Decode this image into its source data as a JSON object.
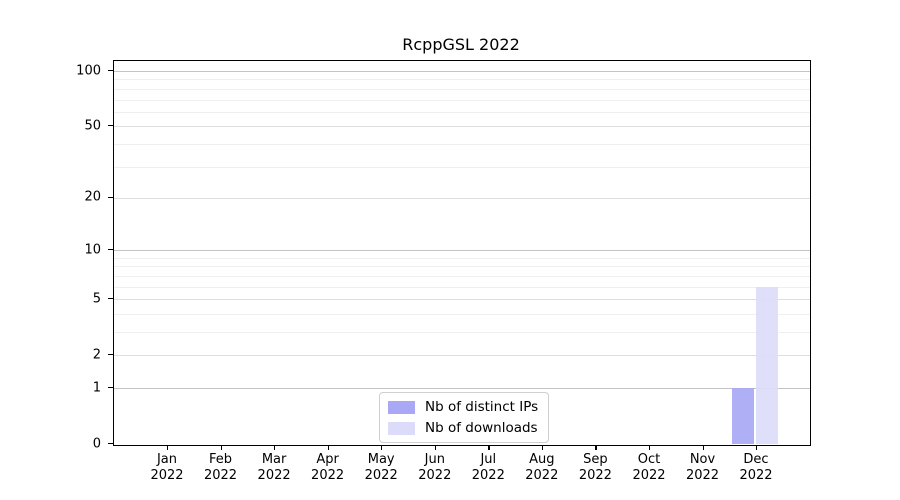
{
  "chart_data": {
    "type": "bar",
    "title": "RcppGSL 2022",
    "categories": [
      "Jan",
      "Feb",
      "Mar",
      "Apr",
      "May",
      "Jun",
      "Jul",
      "Aug",
      "Sep",
      "Oct",
      "Nov",
      "Dec"
    ],
    "category_year": "2022",
    "series": [
      {
        "name": "Nb of distinct IPs",
        "color": "#a8a8f5",
        "values": [
          0,
          0,
          0,
          0,
          0,
          0,
          0,
          0,
          0,
          0,
          0,
          1
        ]
      },
      {
        "name": "Nb of downloads",
        "color": "#dcdcfa",
        "values": [
          0,
          0,
          0,
          0,
          0,
          0,
          0,
          0,
          0,
          0,
          0,
          6
        ]
      }
    ],
    "xlabel": "",
    "ylabel": "",
    "yscale": "log1p",
    "ylim": [
      0,
      113
    ],
    "yticks": [
      0,
      1,
      2,
      5,
      10,
      20,
      50,
      100
    ],
    "yticks_minor": [
      3,
      4,
      6,
      7,
      8,
      9,
      30,
      40,
      60,
      70,
      80,
      90
    ],
    "grid": "horizontal",
    "legend_position": "bottom-center-inside"
  }
}
